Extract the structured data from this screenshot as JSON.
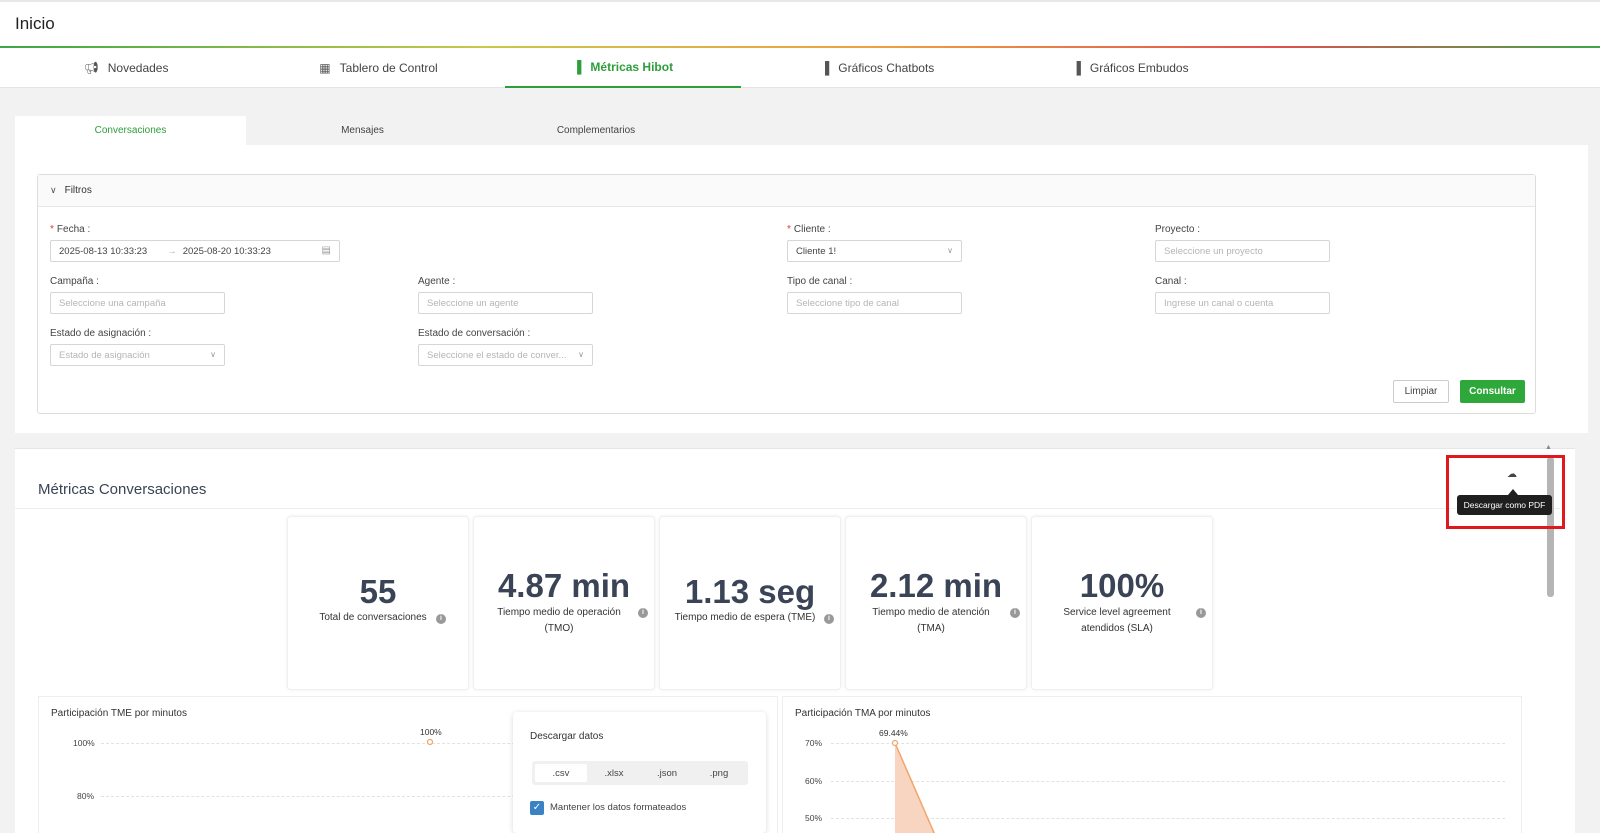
{
  "header": {
    "title": "Inicio"
  },
  "nav_tabs": [
    {
      "label": "Novedades",
      "icon": "megaphone-icon"
    },
    {
      "label": "Tablero de Control",
      "icon": "dashboard-icon"
    },
    {
      "label": "Métricas Hibot",
      "icon": "bar-chart-icon"
    },
    {
      "label": "Gráficos Chatbots",
      "icon": "bar-chart-icon"
    },
    {
      "label": "Gráficos Embudos",
      "icon": "bar-chart-icon"
    }
  ],
  "sub_tabs": [
    {
      "label": "Conversaciones"
    },
    {
      "label": "Mensajes"
    },
    {
      "label": "Complementarios"
    }
  ],
  "filters": {
    "title": "Filtros",
    "fecha": {
      "label": "Fecha",
      "start": "2025-08-13 10:33:23",
      "arrow": "→",
      "end": "2025-08-20 10:33:23"
    },
    "cliente": {
      "label": "Cliente",
      "value": "Cliente 1!"
    },
    "proyecto": {
      "label": "Proyecto",
      "placeholder": "Seleccione un proyecto"
    },
    "campana": {
      "label": "Campaña",
      "placeholder": "Seleccione una campaña"
    },
    "agente": {
      "label": "Agente",
      "placeholder": "Seleccione un agente"
    },
    "tipo_canal": {
      "label": "Tipo de canal",
      "placeholder": "Seleccione tipo de canal"
    },
    "canal": {
      "label": "Canal",
      "placeholder": "Ingrese un canal o cuenta"
    },
    "estado_asignacion": {
      "label": "Estado de asignación",
      "placeholder": "Estado de asignación"
    },
    "estado_conversacion": {
      "label": "Estado de conversación",
      "placeholder": "Seleccione el estado de conver..."
    },
    "limpiar_label": "Limpiar",
    "consultar_label": "Consultar"
  },
  "metrics": {
    "title": "Métricas Conversaciones",
    "download_tooltip": "Descargar como PDF",
    "kpis": [
      {
        "value": "55",
        "label": "Total de conversaciones"
      },
      {
        "value": "4.87 min",
        "label": "Tiempo medio de operación (TMO)"
      },
      {
        "value": "1.13 seg",
        "label": "Tiempo medio de espera (TME)"
      },
      {
        "value": "2.12 min",
        "label": "Tiempo medio de atención (TMA)"
      },
      {
        "value": "100%",
        "label": "Service level agreement atendidos (SLA)"
      }
    ]
  },
  "chart_data": [
    {
      "type": "line",
      "title": "Participación TME por minutos",
      "yticks": [
        "100%",
        "80%"
      ],
      "points": [
        {
          "value": 100,
          "label": "100%"
        }
      ]
    },
    {
      "type": "area",
      "title": "Participación TMA por minutos",
      "yticks": [
        "70%",
        "60%",
        "50%"
      ],
      "points": [
        {
          "value": 69.44,
          "label": "69.44%"
        }
      ]
    }
  ],
  "download_popup": {
    "title": "Descargar datos",
    "options": [
      ".csv",
      ".xlsx",
      ".json",
      ".png"
    ],
    "selected": ".csv",
    "checkbox_label": "Mantener los datos formateados",
    "checkbox_checked": true
  },
  "colors": {
    "accent": "#2ea83a",
    "highlight": "#e0181e",
    "kpi_text": "#3a4456",
    "area_fill": "#f8d5c0",
    "area_line": "#f0a66a"
  }
}
